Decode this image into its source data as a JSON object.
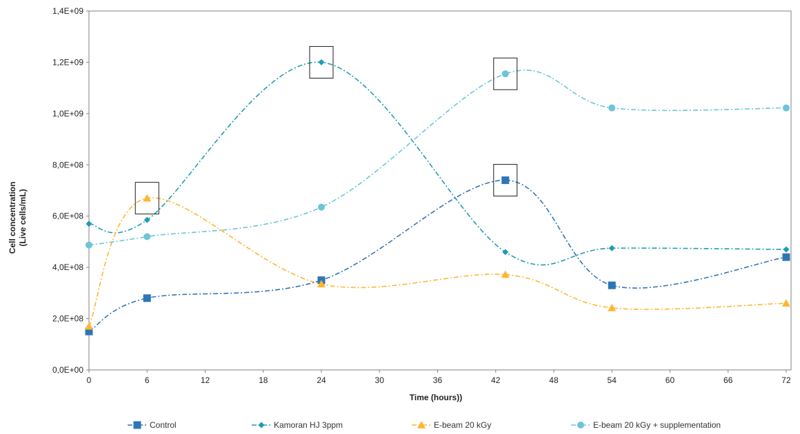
{
  "chart_data": {
    "type": "line",
    "xlabel": "Time (hours))",
    "ylabel": [
      "Cell concentration",
      "(Live cells/mL)"
    ],
    "x_ticks": [
      0,
      6,
      12,
      18,
      24,
      30,
      36,
      42,
      48,
      54,
      60,
      66,
      72
    ],
    "y_ticks": [
      "0,0E+00",
      "2,0E+08",
      "4,0E+08",
      "6,0E+08",
      "8,0E+08",
      "1,0E+09",
      "1,2E+09",
      "1,4E+09"
    ],
    "xlim": [
      0,
      72.5
    ],
    "ylim": [
      0,
      1400000000
    ],
    "legend_position": "bottom",
    "series": [
      {
        "name": "Control",
        "color": "#2e75b6",
        "marker": "square",
        "x": [
          0,
          6,
          24,
          43,
          54,
          72
        ],
        "y": [
          150000000,
          280000000,
          350000000,
          740000000,
          330000000,
          440000000
        ]
      },
      {
        "name": "Kamoran HJ 3ppm",
        "color": "#1f9bb0",
        "marker": "diamond",
        "x": [
          0,
          6,
          24,
          43,
          54,
          72
        ],
        "y": [
          570000000,
          585000000,
          1200000000,
          460000000,
          475000000,
          470000000
        ]
      },
      {
        "name": "E-beam 20 kGy",
        "color": "#ffb62f",
        "marker": "triangle",
        "x": [
          0,
          6,
          24,
          43,
          54,
          72
        ],
        "y": [
          170000000,
          670000000,
          335000000,
          372000000,
          242000000,
          260000000
        ]
      },
      {
        "name": "E-beam 20 kGy + supplementation",
        "color": "#6cc5d8",
        "marker": "circle",
        "x": [
          0,
          6,
          24,
          43,
          54,
          72
        ],
        "y": [
          487000000,
          520000000,
          635000000,
          1155000000,
          1022000000,
          1022000000
        ]
      }
    ],
    "highlight_boxes": [
      {
        "series": 1,
        "x": 24,
        "y": 1200000000
      },
      {
        "series": 2,
        "x": 6,
        "y": 670000000
      },
      {
        "series": 0,
        "x": 43,
        "y": 740000000
      },
      {
        "series": 3,
        "x": 43,
        "y": 1155000000
      }
    ]
  }
}
